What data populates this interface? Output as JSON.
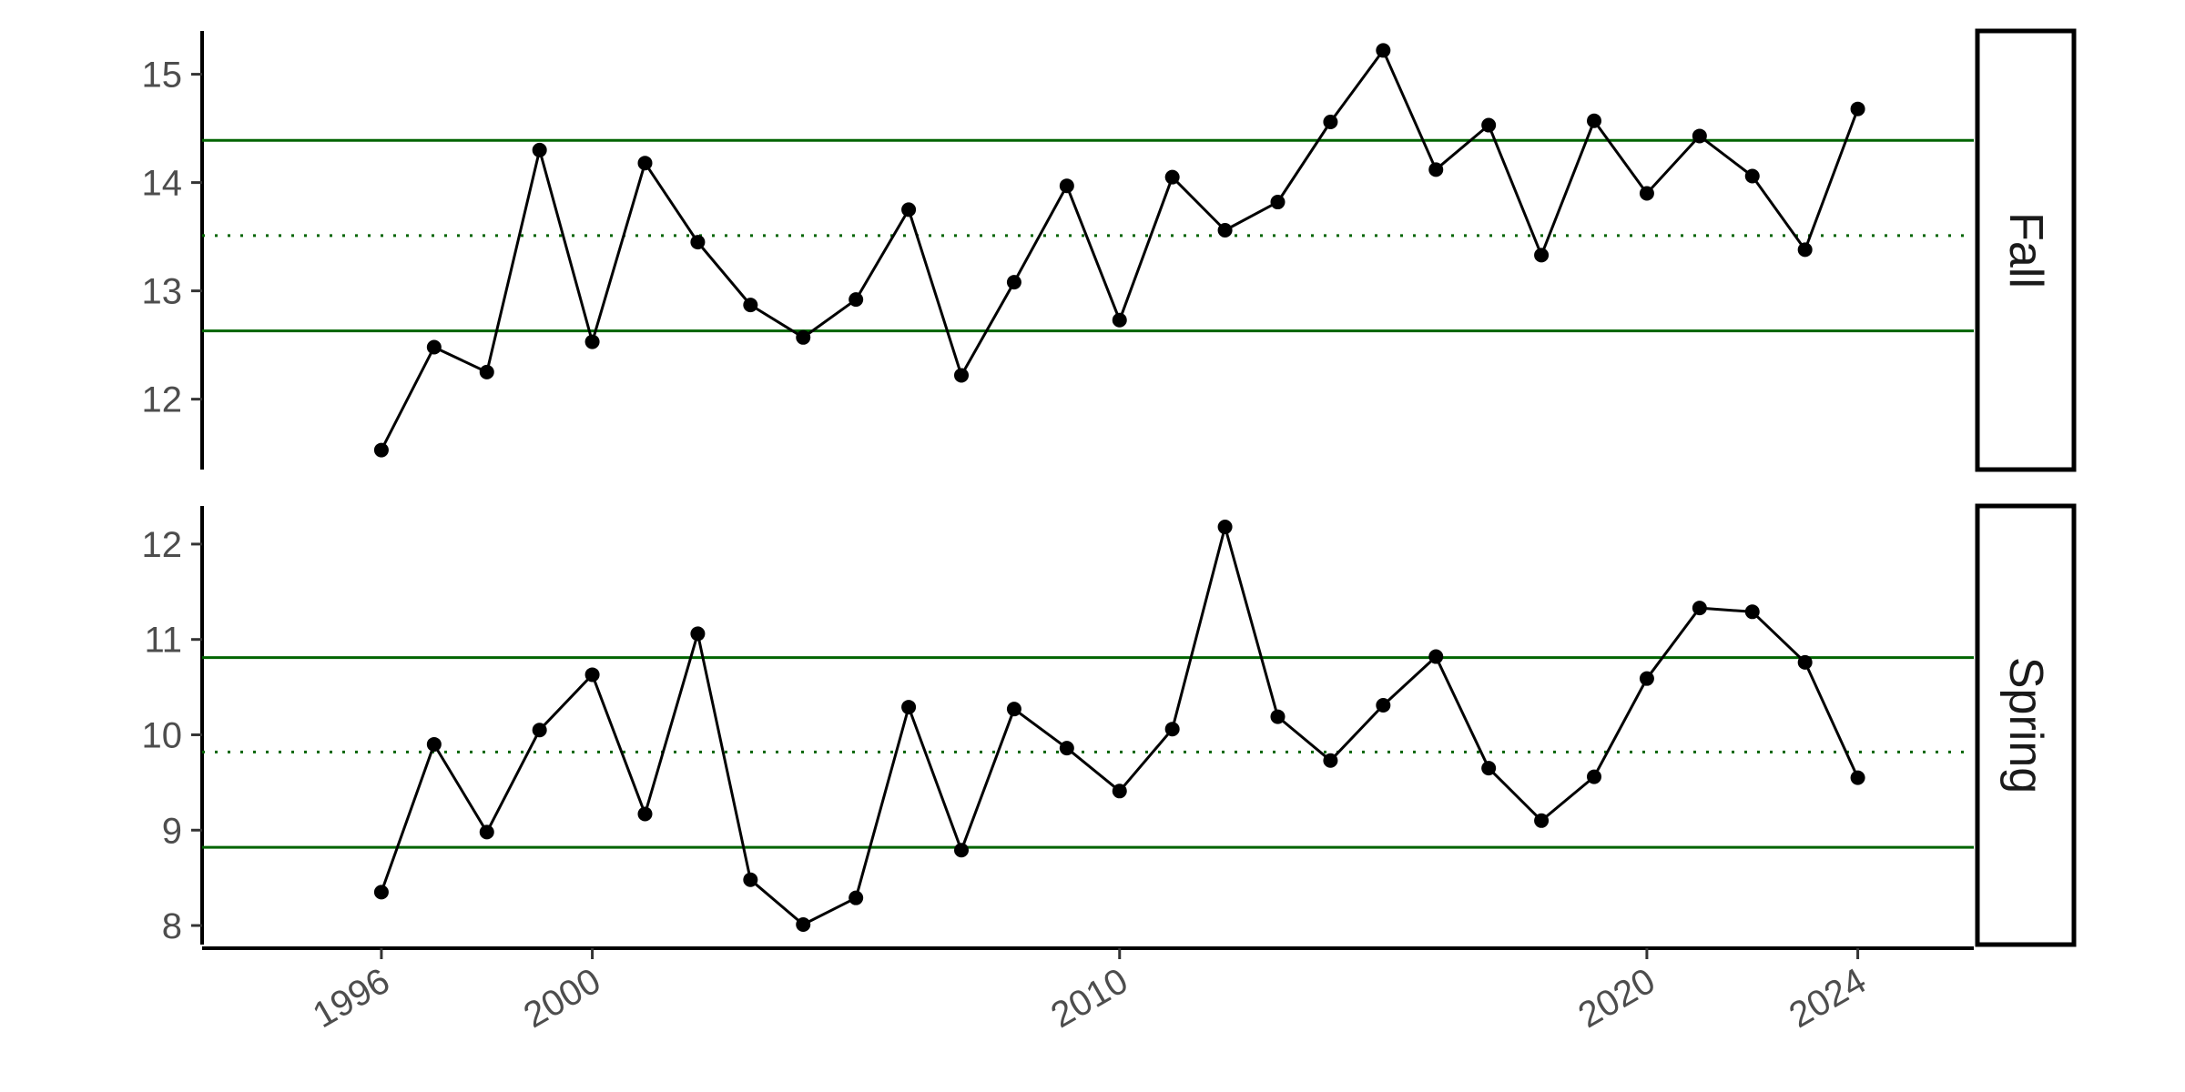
{
  "chart_data": {
    "type": "line",
    "title": "",
    "xlabel": "",
    "ylabel": "",
    "x_ticks": [
      1996,
      2000,
      2010,
      2020,
      2024
    ],
    "x": [
      1996,
      1997,
      1998,
      1999,
      2000,
      2001,
      2002,
      2003,
      2004,
      2005,
      2006,
      2007,
      2008,
      2009,
      2010,
      2011,
      2012,
      2013,
      2014,
      2015,
      2016,
      2017,
      2018,
      2019,
      2020,
      2021,
      2022,
      2023,
      2024
    ],
    "grid": false,
    "line_color": "#000000",
    "reference_color": "#006400",
    "panels": [
      {
        "name": "Fall",
        "ylim": [
          11.35,
          15.4
        ],
        "y_ticks": [
          12,
          13,
          14,
          15
        ],
        "values": [
          11.53,
          12.48,
          12.25,
          14.3,
          12.53,
          14.18,
          13.45,
          12.87,
          12.57,
          12.92,
          13.75,
          12.22,
          13.08,
          13.97,
          12.73,
          14.05,
          13.56,
          13.82,
          14.56,
          15.22,
          14.12,
          14.53,
          13.33,
          14.57,
          13.9,
          14.43,
          14.06,
          13.38,
          14.68
        ],
        "upper_limit": 14.39,
        "mean": 13.51,
        "lower_limit": 12.63
      },
      {
        "name": "Spring",
        "ylim": [
          7.8,
          12.4
        ],
        "y_ticks": [
          8,
          9,
          10,
          11,
          12
        ],
        "values": [
          8.35,
          9.9,
          8.98,
          10.05,
          10.63,
          9.17,
          11.06,
          8.48,
          8.01,
          8.29,
          10.29,
          8.79,
          10.27,
          9.86,
          9.41,
          10.06,
          12.18,
          10.19,
          9.73,
          10.31,
          10.82,
          9.65,
          9.1,
          9.56,
          10.59,
          11.33,
          11.29,
          10.76,
          9.55
        ],
        "upper_limit": 10.81,
        "mean": 9.82,
        "lower_limit": 8.82
      }
    ]
  }
}
